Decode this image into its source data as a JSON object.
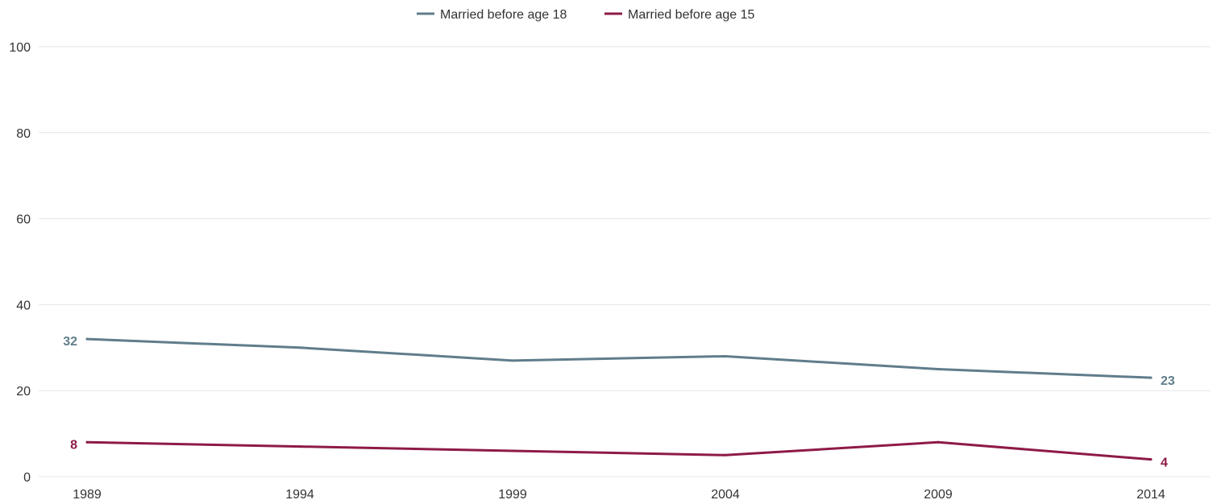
{
  "chart_data": {
    "type": "line",
    "title": "",
    "xlabel": "",
    "ylabel": "",
    "x": [
      "1989",
      "1994",
      "1999",
      "2004",
      "2009",
      "2014"
    ],
    "ylim": [
      0,
      100
    ],
    "yticks": [
      0,
      20,
      40,
      60,
      80,
      100
    ],
    "grid": true,
    "legend_position": "top-center",
    "series": [
      {
        "name": "Married before age 18",
        "color": "#607d8b",
        "values": [
          32,
          30,
          27,
          28,
          25,
          23
        ],
        "labels": {
          "first": "32",
          "last": "23"
        }
      },
      {
        "name": "Married before age 15",
        "color": "#8e1a47",
        "values": [
          8,
          7,
          6,
          5,
          8,
          4
        ],
        "labels": {
          "first": "8",
          "last": "4"
        }
      }
    ]
  }
}
